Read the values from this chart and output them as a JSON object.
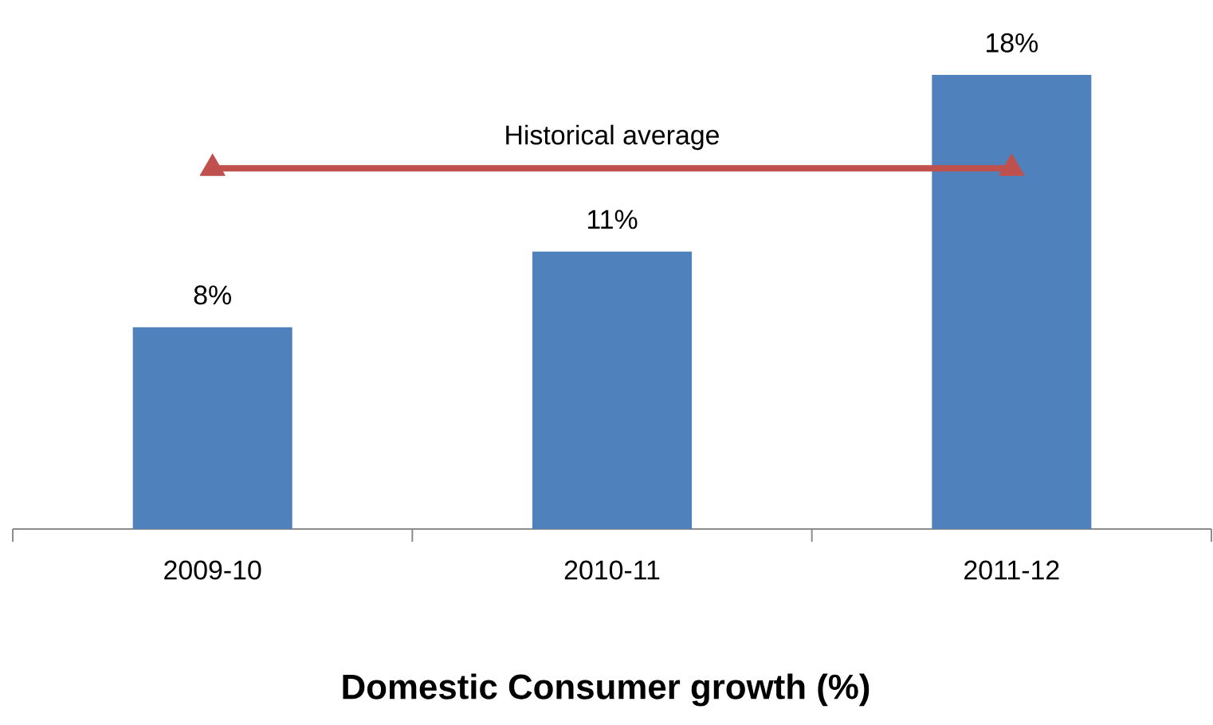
{
  "chart_data": {
    "type": "bar",
    "title": "Domestic Consumer growth (%)",
    "categories": [
      "2009-10",
      "2010-11",
      "2011-12"
    ],
    "series": [
      {
        "color": "#4f81bd",
        "values": [
          8,
          11,
          18
        ],
        "value_labels": [
          "8%",
          "11%",
          "18%"
        ]
      },
      {
        "type": "line",
        "name": "Historical average",
        "color": "#c0504d",
        "values": [
          14.3,
          14.3,
          14.3
        ],
        "marker": "triangle"
      }
    ],
    "grid": false,
    "legend": false
  }
}
